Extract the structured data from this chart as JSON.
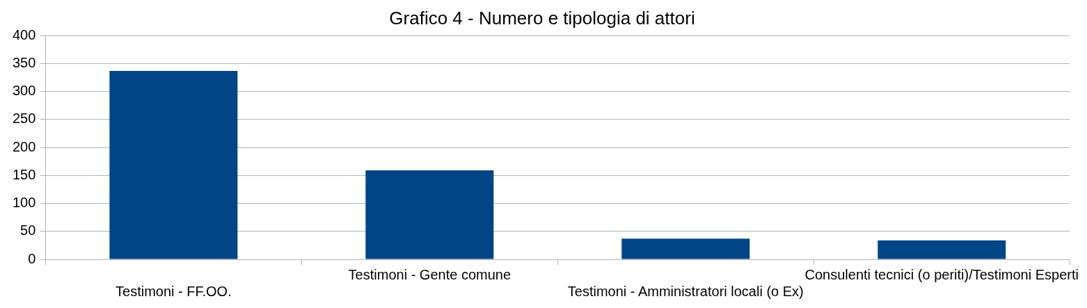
{
  "chart_data": {
    "type": "bar",
    "title": "Grafico 4 - Numero e tipologia di attori",
    "categories": [
      "Testimoni - FF.OO.",
      "Testimoni - Gente comune",
      "Testimoni - Amministratori locali (o Ex)",
      "Consulenti tecnici (o periti)/Testimoni Esperti"
    ],
    "values": [
      337,
      159,
      37,
      34
    ],
    "color": "#004586",
    "ylim": [
      0,
      400
    ],
    "yticks": [
      0,
      50,
      100,
      150,
      200,
      250,
      300,
      350,
      400
    ],
    "grid": "y",
    "legend": false
  }
}
